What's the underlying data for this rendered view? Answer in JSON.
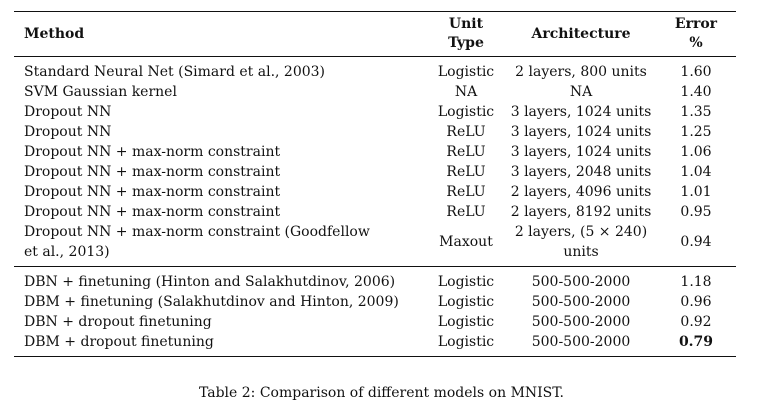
{
  "table": {
    "headers": {
      "method": "Method",
      "unit_type_line1": "Unit",
      "unit_type_line2": "Type",
      "architecture": "Architecture",
      "error_line1": "Error",
      "error_line2": "%"
    },
    "group1": [
      {
        "method": "Standard Neural Net (Simard et al., 2003)",
        "unit": "Logistic",
        "arch": "2 layers, 800 units",
        "error": "1.60"
      },
      {
        "method": "SVM Gaussian kernel",
        "unit": "NA",
        "arch": "NA",
        "error": "1.40"
      },
      {
        "method": "Dropout NN",
        "unit": "Logistic",
        "arch": "3 layers, 1024 units",
        "error": "1.35"
      },
      {
        "method": "Dropout NN",
        "unit": "ReLU",
        "arch": "3 layers, 1024 units",
        "error": "1.25"
      },
      {
        "method": "Dropout NN + max-norm constraint",
        "unit": "ReLU",
        "arch": "3 layers, 1024 units",
        "error": "1.06"
      },
      {
        "method": "Dropout NN + max-norm constraint",
        "unit": "ReLU",
        "arch": "3 layers, 2048 units",
        "error": "1.04"
      },
      {
        "method": "Dropout NN + max-norm constraint",
        "unit": "ReLU",
        "arch": "2 layers, 4096 units",
        "error": "1.01"
      },
      {
        "method": "Dropout NN + max-norm constraint",
        "unit": "ReLU",
        "arch": "2 layers, 8192 units",
        "error": "0.95"
      },
      {
        "method_line1": "Dropout NN + max-norm constraint (Goodfellow",
        "method_line2": "et al., 2013)",
        "unit": "Maxout",
        "arch_line1": "2 layers, (5 × 240)",
        "arch_line2": "units",
        "error": "0.94"
      }
    ],
    "group2": [
      {
        "method": "DBN + finetuning (Hinton and Salakhutdinov, 2006)",
        "unit": "Logistic",
        "arch": "500-500-2000",
        "error": "1.18"
      },
      {
        "method": "DBM + finetuning (Salakhutdinov and Hinton, 2009)",
        "unit": "Logistic",
        "arch": "500-500-2000",
        "error": "0.96"
      },
      {
        "method": "DBN + dropout finetuning",
        "unit": "Logistic",
        "arch": "500-500-2000",
        "error": "0.92"
      },
      {
        "method": "DBM + dropout finetuning",
        "unit": "Logistic",
        "arch": "500-500-2000",
        "error": "0.79"
      }
    ]
  },
  "caption": "Table 2: Comparison of different models on MNIST."
}
